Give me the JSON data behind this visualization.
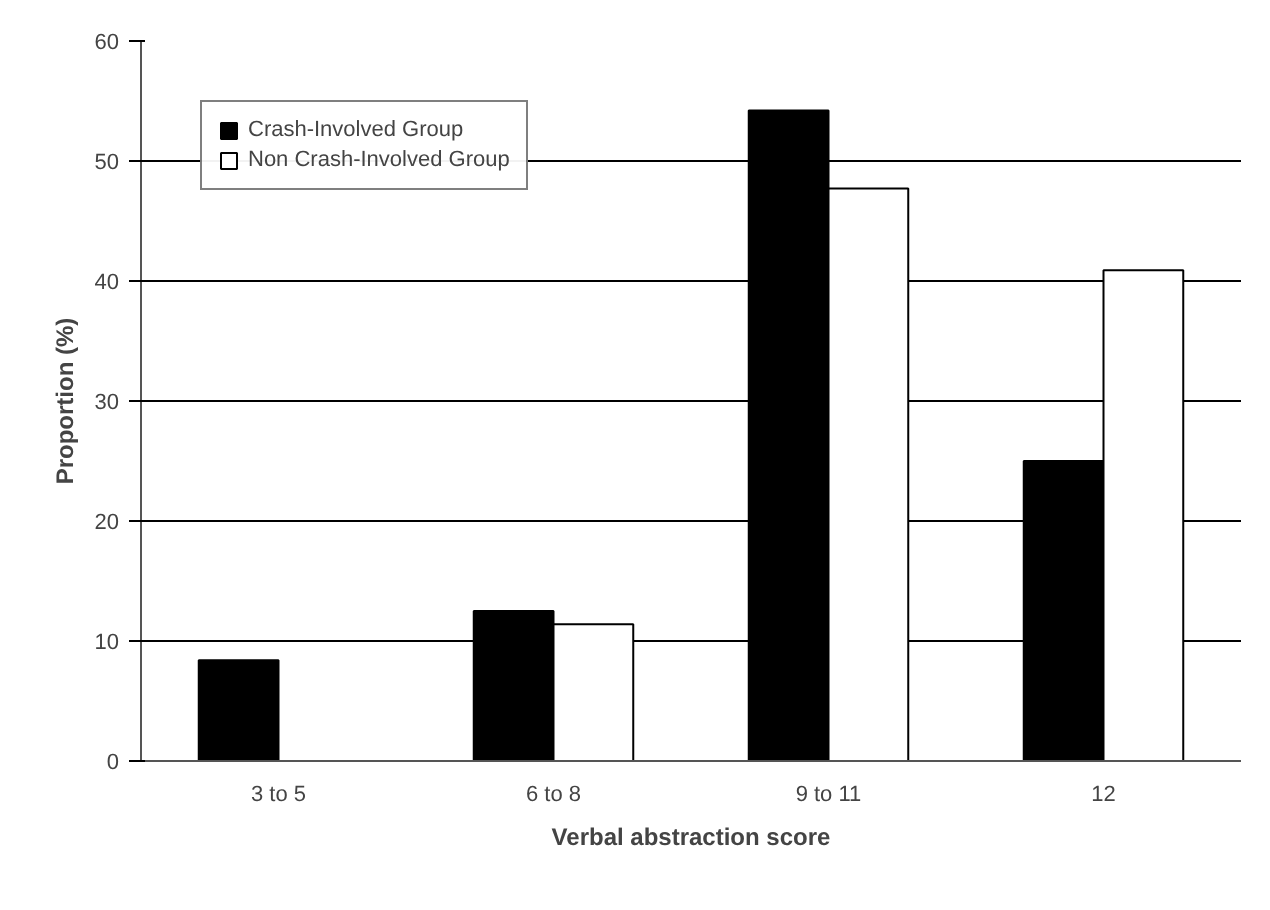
{
  "chart_data": {
    "type": "bar",
    "xlabel": "Verbal abstraction score",
    "ylabel": "Proportion (%)",
    "categories": [
      "3 to 5",
      "6 to 8",
      "9 to 11",
      "12"
    ],
    "series": [
      {
        "name": "Crash-Involved Group",
        "color": "#000000",
        "values": [
          8.4,
          12.5,
          54.2,
          25
        ]
      },
      {
        "name": "Non Crash-Involved Group",
        "color": "#ffffff",
        "values": [
          null,
          11.4,
          47.7,
          40.9
        ]
      }
    ],
    "ylim": [
      0,
      60
    ],
    "yticks": [
      0,
      10,
      20,
      30,
      40,
      50,
      60
    ],
    "grid": "y",
    "legend": "top left"
  }
}
